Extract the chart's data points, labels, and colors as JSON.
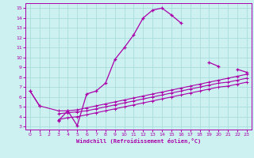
{
  "xlabel": "Windchill (Refroidissement éolien,°C)",
  "bg_color": "#cdf0f0",
  "grid_color": "#aadddd",
  "line_color": "#aa00aa",
  "xlim": [
    -0.5,
    23.5
  ],
  "ylim": [
    2.7,
    15.5
  ],
  "xticks": [
    0,
    1,
    2,
    3,
    4,
    5,
    6,
    7,
    8,
    9,
    10,
    11,
    12,
    13,
    14,
    15,
    16,
    17,
    18,
    19,
    20,
    21,
    22,
    23
  ],
  "yticks": [
    3,
    4,
    5,
    6,
    7,
    8,
    9,
    10,
    11,
    12,
    13,
    14,
    15
  ],
  "main_x": [
    0,
    1,
    3,
    4,
    5,
    6,
    7,
    8,
    9,
    10,
    11,
    12,
    13,
    14,
    15,
    16,
    19,
    20,
    22,
    23
  ],
  "main_y": [
    6.6,
    5.1,
    3.6,
    4.6,
    3.1,
    6.3,
    6.6,
    7.4,
    9.8,
    11.0,
    12.3,
    14.0,
    14.8,
    15.0,
    14.3,
    13.5,
    9.5,
    9.1,
    8.8,
    8.5
  ],
  "line1_x": [
    0,
    1,
    3,
    4,
    5,
    6,
    7,
    8,
    9,
    10,
    11,
    12,
    13,
    14,
    15,
    16,
    17,
    18,
    19,
    20,
    21,
    22,
    23
  ],
  "line1_y": [
    6.6,
    5.1,
    4.6,
    4.6,
    4.7,
    4.9,
    5.1,
    5.3,
    5.5,
    5.7,
    5.9,
    6.1,
    6.3,
    6.5,
    6.7,
    6.9,
    7.1,
    7.3,
    7.5,
    7.7,
    7.9,
    8.1,
    8.3
  ],
  "line2_x": [
    3,
    4,
    5,
    6,
    7,
    8,
    9,
    10,
    11,
    12,
    13,
    14,
    15,
    16,
    17,
    18,
    19,
    20,
    21,
    22,
    23
  ],
  "line2_y": [
    4.3,
    4.4,
    4.5,
    4.6,
    4.8,
    5.0,
    5.2,
    5.4,
    5.6,
    5.8,
    6.0,
    6.2,
    6.4,
    6.6,
    6.8,
    7.0,
    7.2,
    7.4,
    7.5,
    7.7,
    7.9
  ],
  "line3_x": [
    3,
    4,
    5,
    6,
    7,
    8,
    9,
    10,
    11,
    12,
    13,
    14,
    15,
    16,
    17,
    18,
    19,
    20,
    21,
    22,
    23
  ],
  "line3_y": [
    3.7,
    3.9,
    4.0,
    4.2,
    4.4,
    4.6,
    4.8,
    5.0,
    5.2,
    5.4,
    5.6,
    5.8,
    6.0,
    6.2,
    6.4,
    6.6,
    6.8,
    7.0,
    7.1,
    7.3,
    7.5
  ]
}
